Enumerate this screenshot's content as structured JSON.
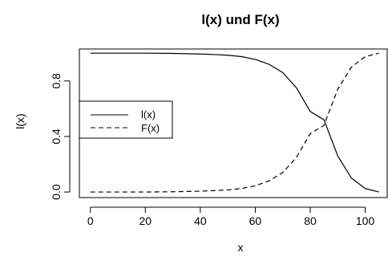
{
  "chart_data": {
    "type": "line",
    "title": "l(x) und F(x)",
    "xlabel": "x",
    "ylabel": "l(x)",
    "xlim": [
      -4,
      108
    ],
    "ylim": [
      -0.04,
      1.03
    ],
    "x_ticks": [
      0,
      20,
      40,
      60,
      80,
      100
    ],
    "x_tick_labels": [
      "0",
      "20",
      "40",
      "60",
      "80",
      "100"
    ],
    "y_ticks": [
      0.0,
      0.4,
      0.8
    ],
    "y_tick_labels": [
      "0.0",
      "0.4",
      "0.8"
    ],
    "grid": false,
    "legend_position": "left",
    "series": [
      {
        "name": "l(x)",
        "line_style": "solid",
        "color": "#000000",
        "x": [
          0,
          10,
          20,
          30,
          35,
          40,
          45,
          50,
          55,
          60,
          65,
          70,
          75,
          80,
          85,
          90,
          95,
          100,
          105
        ],
        "y": [
          1.0,
          1.0,
          1.0,
          0.998,
          0.996,
          0.994,
          0.99,
          0.985,
          0.975,
          0.955,
          0.92,
          0.86,
          0.75,
          0.58,
          0.52,
          0.26,
          0.1,
          0.025,
          0.0
        ]
      },
      {
        "name": "F(x)",
        "line_style": "dashed",
        "color": "#000000",
        "x": [
          0,
          10,
          20,
          30,
          35,
          40,
          45,
          50,
          55,
          60,
          65,
          70,
          75,
          80,
          85,
          90,
          95,
          100,
          105
        ],
        "y": [
          0.0,
          0.0,
          0.0,
          0.002,
          0.004,
          0.006,
          0.01,
          0.015,
          0.025,
          0.045,
          0.08,
          0.14,
          0.25,
          0.42,
          0.48,
          0.74,
          0.9,
          0.975,
          1.0
        ]
      }
    ]
  }
}
